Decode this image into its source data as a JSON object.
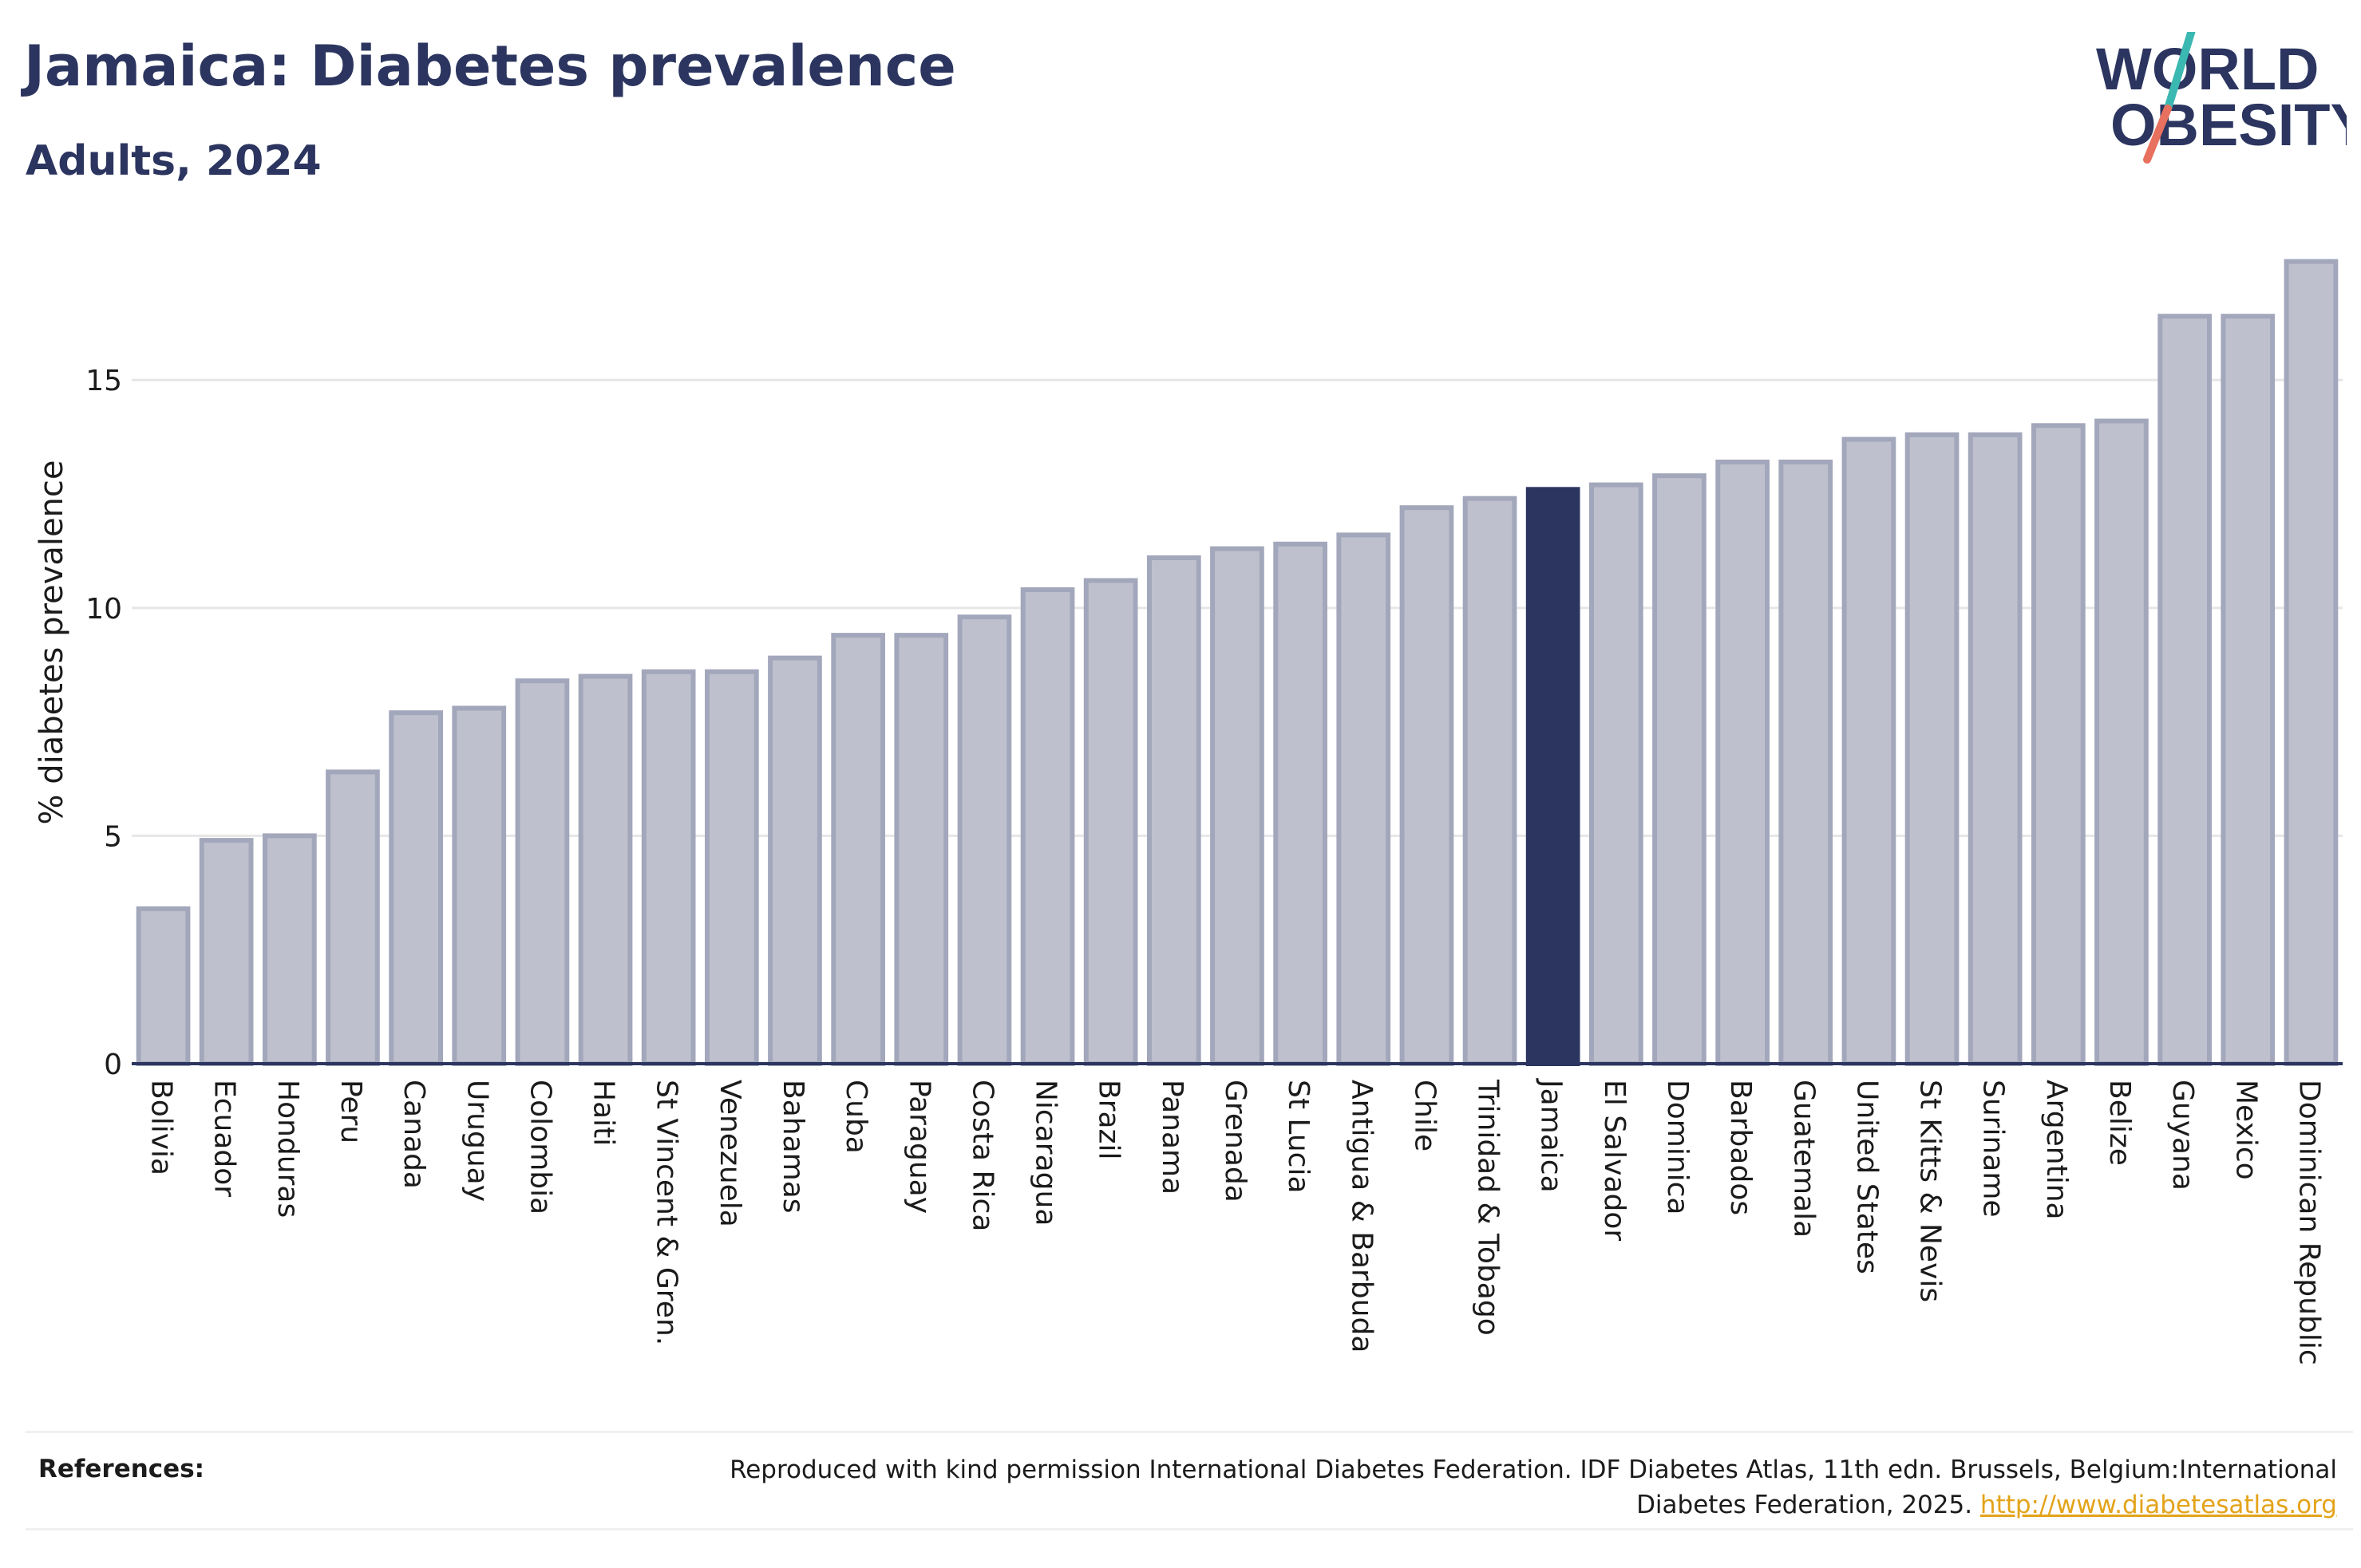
{
  "title": "Jamaica: Diabetes prevalence",
  "subtitle": "Adults, 2024",
  "logo": {
    "line1": "WORLD",
    "line2": "OBESITY",
    "colors": {
      "text": "#2b355f",
      "slash_top": "#3bb8b1",
      "slash_bottom": "#e8705e"
    }
  },
  "colors": {
    "bar_fill": "#bec1cd",
    "bar_stroke": "#a3a7bb",
    "highlight": "#2b355f",
    "grid": "#e6e6e9",
    "axis": "#2b355f",
    "text": "#1b1b1b",
    "link": "#e3a31a"
  },
  "chart_data": {
    "type": "bar",
    "title": "Jamaica: Diabetes prevalence",
    "subtitle": "Adults, 2024",
    "xlabel": "",
    "ylabel": "% diabetes prevalence",
    "ylim": [
      0,
      17.7
    ],
    "yticks": [
      0,
      5,
      10,
      15
    ],
    "grid": "horizontal",
    "highlight": "Jamaica",
    "categories": [
      "Bolivia",
      "Ecuador",
      "Honduras",
      "Peru",
      "Canada",
      "Uruguay",
      "Colombia",
      "Haiti",
      "St Vincent & Gren.",
      "Venezuela",
      "Bahamas",
      "Cuba",
      "Paraguay",
      "Costa Rica",
      "Nicaragua",
      "Brazil",
      "Panama",
      "Grenada",
      "St Lucia",
      "Antigua & Barbuda",
      "Chile",
      "Trinidad & Tobago",
      "Jamaica",
      "El Salvador",
      "Dominica",
      "Barbados",
      "Guatemala",
      "United States",
      "St Kitts & Nevis",
      "Suriname",
      "Argentina",
      "Belize",
      "Guyana",
      "Mexico",
      "Dominican Republic"
    ],
    "values": [
      3.4,
      4.9,
      5.0,
      6.4,
      7.7,
      7.8,
      8.4,
      8.5,
      8.6,
      8.6,
      8.9,
      9.4,
      9.4,
      9.8,
      10.4,
      10.6,
      11.1,
      11.3,
      11.4,
      11.6,
      12.2,
      12.4,
      12.6,
      12.7,
      12.9,
      13.2,
      13.2,
      13.7,
      13.8,
      13.8,
      14.0,
      14.1,
      16.4,
      16.4,
      17.6
    ]
  },
  "references": {
    "label": "References:",
    "text": "Reproduced with kind permission International Diabetes Federation. IDF Diabetes Atlas, 11th edn. Brussels, Belgium:International Diabetes Federation, 2025.",
    "link": "http://www.diabetesatlas.org"
  }
}
